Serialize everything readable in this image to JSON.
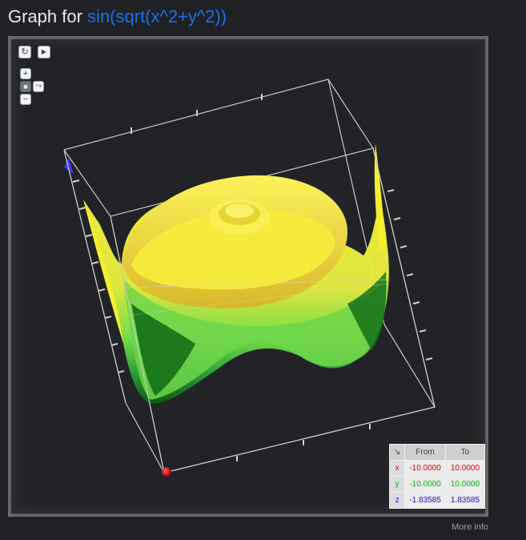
{
  "title": {
    "prefix": "Graph for",
    "function": "sin(sqrt(x^2+y^2))"
  },
  "controls": {
    "reset_icon": "refresh-icon",
    "play_icon": "play-icon",
    "zoom_in": "+",
    "zoom_out": "−",
    "camera_icon": "camera-icon",
    "axes_icon": "axes-icon"
  },
  "range_table": {
    "corner_icon": "↘",
    "header_from": "From",
    "header_to": "To",
    "x": {
      "label": "x",
      "from": "-10.0000",
      "to": "10.0000"
    },
    "y": {
      "label": "y",
      "from": "-10.0000",
      "to": "10.0000"
    },
    "z": {
      "label": "z",
      "from": "-1.83585",
      "to": "1.83585"
    }
  },
  "more_info": "More info",
  "colors": {
    "accent": "#1a73e8",
    "surface_high": "#f5ef30",
    "surface_mid": "#7de84a",
    "surface_low": "#0b6a12",
    "axis_x": "#d60000",
    "axis_y": "#00b800",
    "axis_z": "#1a10c8"
  }
}
